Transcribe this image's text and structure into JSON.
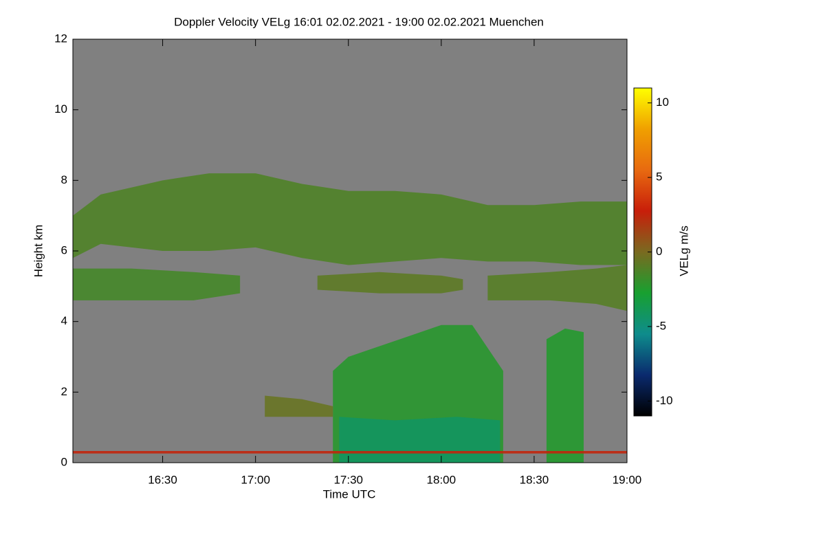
{
  "chart_data": {
    "type": "time-height",
    "title": "Doppler Velocity VELg   16:01 02.02.2021 - 19:00 02.02.2021 Muenchen",
    "x_label": "Time UTC",
    "y_label": "Height km",
    "colorbar_label": "VELg m/s",
    "xlim": [
      "16:01",
      "19:00"
    ],
    "xticks": [
      "16:30",
      "17:00",
      "17:30",
      "18:00",
      "18:30",
      "19:00"
    ],
    "ylim": [
      0,
      12
    ],
    "yticks": [
      0,
      2,
      4,
      6,
      8,
      10,
      12
    ],
    "clim": [
      -11,
      11
    ],
    "cticks": [
      -10,
      -5,
      0,
      5,
      10
    ],
    "colormap": [
      "#000000",
      "#0a2a6e",
      "#0e8c8c",
      "#18a030",
      "#7a6a20",
      "#c81e0a",
      "#e86a10",
      "#f0a000",
      "#ffff00"
    ],
    "background_color": "#808080",
    "layers": [
      {
        "x": [
          "16:01",
          "16:10",
          "16:30",
          "16:45",
          "17:00",
          "17:15",
          "17:30",
          "17:45",
          "18:00",
          "18:15",
          "18:30",
          "18:45",
          "19:00"
        ],
        "top": [
          7.0,
          7.6,
          8.0,
          8.2,
          8.2,
          7.9,
          7.7,
          7.7,
          7.6,
          7.3,
          7.3,
          7.4,
          7.4
        ],
        "bottom": [
          5.8,
          6.2,
          6.0,
          6.0,
          6.1,
          5.8,
          5.6,
          5.7,
          5.8,
          5.7,
          5.7,
          5.6,
          5.6
        ],
        "value": -1.2
      },
      {
        "x": [
          "16:01",
          "16:20",
          "16:40",
          "16:55"
        ],
        "top": [
          5.5,
          5.5,
          5.4,
          5.3
        ],
        "bottom": [
          4.6,
          4.6,
          4.6,
          4.8
        ],
        "value": -1.5
      },
      {
        "x": [
          "17:20",
          "17:40",
          "18:00",
          "18:07"
        ],
        "top": [
          5.3,
          5.4,
          5.3,
          5.2
        ],
        "bottom": [
          4.9,
          4.8,
          4.8,
          4.9
        ],
        "value": -0.8
      },
      {
        "x": [
          "18:15",
          "18:35",
          "18:50",
          "19:00"
        ],
        "top": [
          5.3,
          5.4,
          5.5,
          5.6
        ],
        "bottom": [
          4.6,
          4.6,
          4.5,
          4.3
        ],
        "value": -1.0
      },
      {
        "x": [
          "17:25",
          "17:30",
          "17:40",
          "17:50",
          "18:00",
          "18:10",
          "18:20"
        ],
        "top": [
          2.6,
          3.0,
          3.3,
          3.6,
          3.9,
          3.9,
          2.6
        ],
        "bottom": [
          0,
          0,
          0,
          0,
          0,
          0,
          0
        ],
        "value": -2.3
      },
      {
        "x": [
          "17:27",
          "17:45",
          "18:05",
          "18:19"
        ],
        "top": [
          1.3,
          1.2,
          1.3,
          1.2
        ],
        "bottom": [
          0,
          0,
          0,
          0
        ],
        "value": -4.2
      },
      {
        "x": [
          "18:34",
          "18:40",
          "18:46"
        ],
        "top": [
          3.5,
          3.8,
          3.7
        ],
        "bottom": [
          0,
          0,
          0
        ],
        "value": -2.4
      },
      {
        "x": [
          "17:03",
          "17:15",
          "17:25"
        ],
        "top": [
          1.9,
          1.8,
          1.6
        ],
        "bottom": [
          1.3,
          1.3,
          1.3
        ],
        "value": -0.5
      },
      {
        "x": [
          "16:01",
          "17:30",
          "19:00"
        ],
        "top": [
          0.33,
          0.33,
          0.33
        ],
        "bottom": [
          0.26,
          0.26,
          0.26
        ],
        "value": 2.5
      }
    ]
  }
}
